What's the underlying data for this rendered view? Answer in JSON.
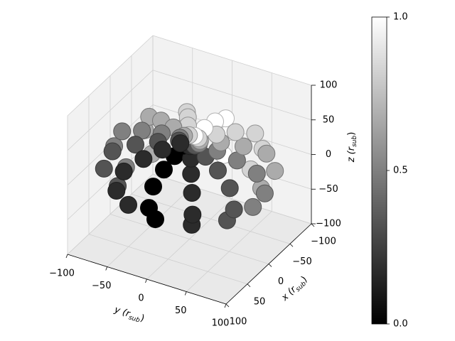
{
  "chart_data": {
    "type": "scatter3d",
    "xlabel": [
      "x (r",
      "sub",
      ")"
    ],
    "ylabel": [
      "y (r",
      "sub",
      ")"
    ],
    "zlabel": [
      "z (r",
      "sub",
      ")"
    ],
    "xlim": [
      -100,
      100
    ],
    "ylim": [
      -100,
      100
    ],
    "zlim": [
      -100,
      100
    ],
    "xticks": [
      {
        "value": -100,
        "label": "−100"
      },
      {
        "value": -50,
        "label": "−50"
      },
      0,
      50,
      100
    ],
    "yticks": [
      {
        "value": -100,
        "label": "−100"
      },
      {
        "value": -50,
        "label": "−50"
      },
      0,
      50,
      100
    ],
    "zticks": [
      {
        "value": -100,
        "label": "−100"
      },
      {
        "value": -50,
        "label": "−50"
      },
      0,
      50,
      100
    ],
    "grid": true,
    "cmap": "gray",
    "clim": [
      0,
      1
    ],
    "cticks": [
      {
        "value": 0,
        "label": "0.0"
      },
      0.5,
      {
        "value": 1,
        "label": "1.0"
      }
    ],
    "x": [
      80,
      69,
      40,
      0,
      -40,
      -69,
      -80,
      -69,
      -40,
      0,
      40,
      69,
      95,
      82,
      48,
      0,
      -48,
      -82,
      -95,
      -82,
      -48,
      0,
      48,
      82,
      85,
      74,
      43,
      0,
      -43,
      -74,
      -85,
      -74,
      -43,
      0,
      43,
      74,
      60,
      52,
      30,
      0,
      -30,
      -52,
      -60,
      -52,
      -30,
      0,
      30,
      52,
      35,
      30,
      18,
      0,
      -18,
      -30,
      -35,
      -30,
      -18,
      0,
      18,
      30,
      12,
      10,
      6,
      0,
      -6,
      -10,
      -12,
      -10,
      -6,
      0,
      6,
      10
    ],
    "y": [
      0,
      40,
      69,
      80,
      69,
      40,
      0,
      -40,
      -69,
      -80,
      -69,
      -40,
      0,
      48,
      82,
      95,
      82,
      48,
      0,
      -48,
      -82,
      -95,
      -82,
      -48,
      0,
      43,
      74,
      85,
      74,
      43,
      0,
      -43,
      -74,
      -85,
      -74,
      -43,
      0,
      30,
      52,
      60,
      52,
      30,
      0,
      -30,
      -52,
      -60,
      -52,
      -30,
      0,
      18,
      30,
      35,
      30,
      18,
      0,
      -18,
      -30,
      -35,
      -30,
      -18,
      0,
      6,
      10,
      12,
      10,
      6,
      0,
      -6,
      -10,
      -12,
      -10,
      -6
    ],
    "z": [
      -25,
      -25,
      -25,
      -25,
      -25,
      -25,
      -25,
      -25,
      -25,
      -25,
      -25,
      -25,
      0,
      0,
      0,
      0,
      0,
      0,
      0,
      0,
      0,
      0,
      0,
      0,
      25,
      25,
      25,
      25,
      25,
      25,
      25,
      25,
      25,
      25,
      25,
      25,
      35,
      35,
      35,
      35,
      35,
      35,
      35,
      35,
      35,
      35,
      35,
      35,
      40,
      40,
      40,
      40,
      40,
      40,
      40,
      40,
      40,
      40,
      40,
      40,
      42,
      42,
      42,
      42,
      42,
      42,
      42,
      42,
      42,
      42,
      42,
      42
    ],
    "c": [
      0,
      0.17,
      0.33,
      0.5,
      0.67,
      0.83,
      1,
      0.83,
      0.67,
      0.5,
      0.33,
      0.17,
      0,
      0.17,
      0.33,
      0.5,
      0.67,
      0.83,
      1,
      0.83,
      0.67,
      0.5,
      0.33,
      0.17,
      0,
      0.17,
      0.33,
      0.5,
      0.67,
      0.83,
      1,
      0.83,
      0.67,
      0.5,
      0.33,
      0.17,
      0,
      0.17,
      0.33,
      0.5,
      0.67,
      0.83,
      1,
      0.83,
      0.67,
      0.5,
      0.33,
      0.17,
      0,
      0.17,
      0.33,
      0.5,
      0.67,
      0.83,
      1,
      0.83,
      0.67,
      0.5,
      0.33,
      0.17,
      0,
      0.17,
      0.33,
      0.5,
      0.67,
      0.83,
      1,
      0.83,
      0.67,
      0.5,
      0.33,
      0.17
    ]
  }
}
